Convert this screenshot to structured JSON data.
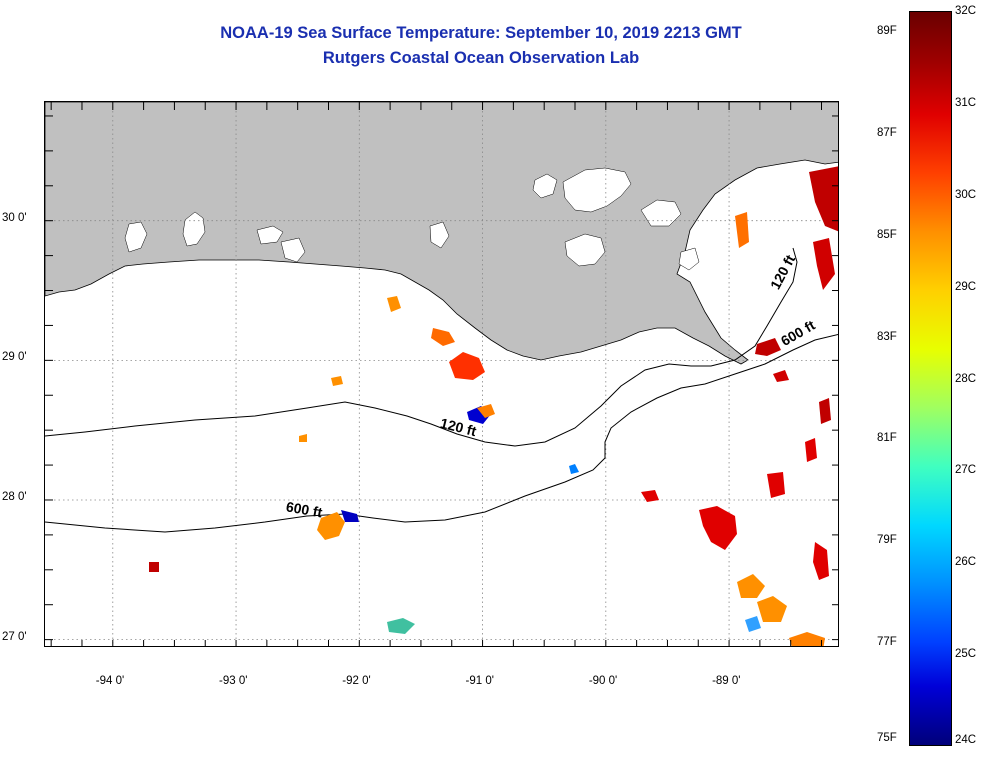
{
  "title": {
    "line1": "NOAA-19 Sea Surface Temperature:  September 10, 2019 2213 GMT",
    "line2": "Rutgers Coastal Ocean Observation Lab"
  },
  "map": {
    "lon_range": [
      -94.55,
      -88.1
    ],
    "lat_range": [
      26.94,
      30.85
    ],
    "lon_ticks": [
      {
        "value": -94,
        "label": "-94 0'"
      },
      {
        "value": -93,
        "label": "-93 0'"
      },
      {
        "value": -92,
        "label": "-92 0'"
      },
      {
        "value": -91,
        "label": "-91 0'"
      },
      {
        "value": -90,
        "label": "-90 0'"
      },
      {
        "value": -89,
        "label": "-89 0'"
      }
    ],
    "lat_ticks": [
      {
        "value": 30,
        "label": "30 0'"
      },
      {
        "value": 29,
        "label": "29 0'"
      },
      {
        "value": 28,
        "label": "28 0'"
      },
      {
        "value": 27,
        "label": "27 0'"
      }
    ],
    "grid": "dotted",
    "land_color": "#c0c0c0",
    "no_data_color": "#ffffff",
    "contours": [
      {
        "label": "120 ft",
        "label_lon": -91.35,
        "label_lat": 28.52,
        "label_rot": 14
      },
      {
        "label": "600 ft",
        "label_lon": -92.6,
        "label_lat": 27.92,
        "label_rot": 10
      },
      {
        "label": "120 ft",
        "label_lon": -88.6,
        "label_lat": 29.5,
        "label_rot": -62
      },
      {
        "label": "600 ft",
        "label_lon": -88.55,
        "label_lat": 29.1,
        "label_rot": -30
      }
    ]
  },
  "colorbar": {
    "fahrenheit": [
      "89F",
      "87F",
      "85F",
      "83F",
      "81F",
      "79F",
      "77F",
      "75F"
    ],
    "celsius": [
      "32C",
      "31C",
      "30C",
      "29C",
      "28C",
      "27C",
      "26C",
      "25C",
      "24C"
    ],
    "colors": [
      "#00007a",
      "#0000d8",
      "#0090ff",
      "#00d8ff",
      "#a0ff60",
      "#e8ff00",
      "#ff9000",
      "#e00000",
      "#6a0000"
    ]
  }
}
